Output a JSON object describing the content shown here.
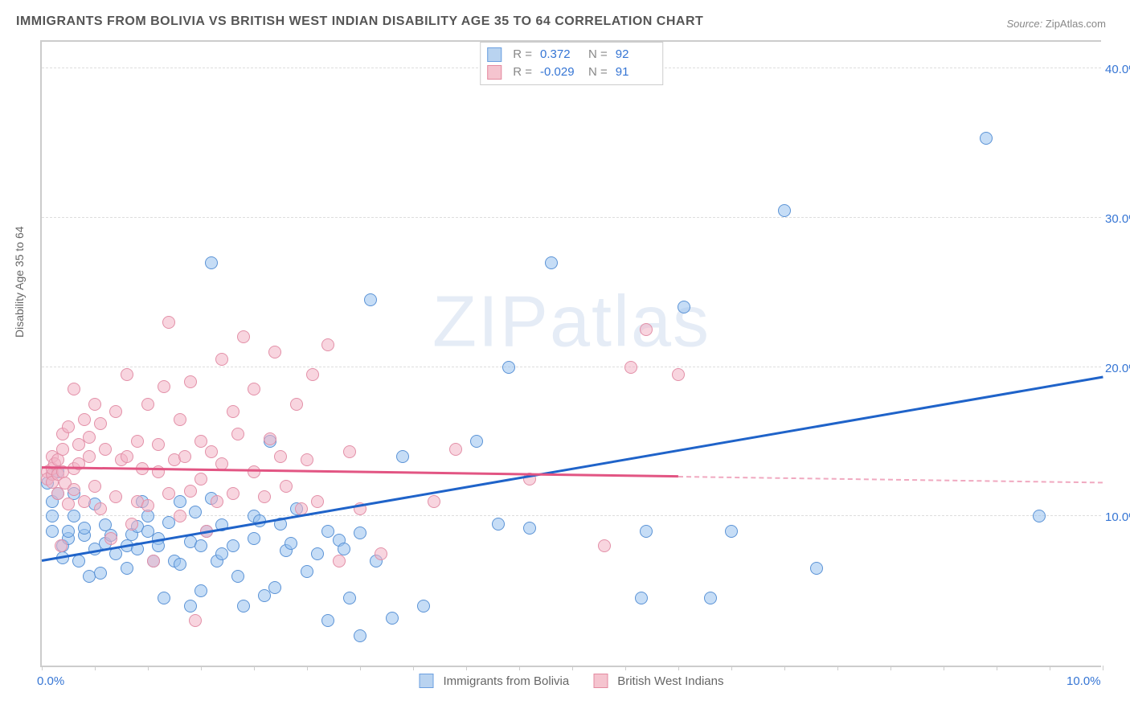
{
  "title": "IMMIGRANTS FROM BOLIVIA VS BRITISH WEST INDIAN DISABILITY AGE 35 TO 64 CORRELATION CHART",
  "source_prefix": "Source: ",
  "source_name": "ZipAtlas.com",
  "y_axis_label": "Disability Age 35 to 64",
  "watermark_a": "ZIP",
  "watermark_b": "atlas",
  "chart": {
    "type": "scatter",
    "xlim": [
      0,
      10
    ],
    "ylim": [
      0,
      42
    ],
    "x_ticks": [
      0,
      5,
      10
    ],
    "x_tick_labels": [
      "0.0%",
      "",
      "10.0%"
    ],
    "y_ticks": [
      10,
      20,
      30,
      40
    ],
    "y_tick_labels": [
      "10.0%",
      "20.0%",
      "30.0%",
      "40.0%"
    ],
    "background_color": "#ffffff",
    "grid_color": "#dddddd",
    "axis_color": "#cccccc",
    "x_minor_ticks": 20
  },
  "legend_top": {
    "r_label": "R =",
    "n_label": "N =",
    "rows": [
      {
        "swatch_fill": "#b9d3f0",
        "swatch_border": "#6a9fe0",
        "r": "0.372",
        "n": "92"
      },
      {
        "swatch_fill": "#f5c4cf",
        "swatch_border": "#e48aa0",
        "r": "-0.029",
        "n": "91"
      }
    ]
  },
  "legend_bottom": {
    "items": [
      {
        "swatch_fill": "#b9d3f0",
        "swatch_border": "#6a9fe0",
        "label": "Immigrants from Bolivia"
      },
      {
        "swatch_fill": "#f5c4cf",
        "swatch_border": "#e48aa0",
        "label": "British West Indians"
      }
    ]
  },
  "series": [
    {
      "name": "bolivia",
      "fill": "rgba(151, 193, 238, 0.55)",
      "stroke": "#5b93d6",
      "marker_size": 16,
      "trend_color": "#1f63c9",
      "trend_from": [
        0,
        7.0
      ],
      "trend_to": [
        10,
        19.3
      ],
      "points": [
        [
          0.05,
          12.2
        ],
        [
          0.1,
          11.0
        ],
        [
          0.1,
          12.8
        ],
        [
          0.1,
          10.0
        ],
        [
          0.1,
          9.0
        ],
        [
          0.15,
          11.5
        ],
        [
          0.15,
          13.0
        ],
        [
          0.2,
          7.2
        ],
        [
          0.2,
          8.0
        ],
        [
          0.25,
          8.5
        ],
        [
          0.25,
          9.0
        ],
        [
          0.3,
          10.0
        ],
        [
          0.3,
          11.5
        ],
        [
          0.35,
          7.0
        ],
        [
          0.4,
          8.7
        ],
        [
          0.4,
          9.2
        ],
        [
          0.45,
          6.0
        ],
        [
          0.5,
          7.8
        ],
        [
          0.5,
          10.8
        ],
        [
          0.55,
          6.2
        ],
        [
          0.6,
          9.4
        ],
        [
          0.6,
          8.2
        ],
        [
          0.65,
          8.7
        ],
        [
          0.7,
          7.5
        ],
        [
          0.8,
          8.0
        ],
        [
          0.8,
          6.5
        ],
        [
          0.85,
          8.8
        ],
        [
          0.9,
          9.3
        ],
        [
          0.9,
          7.8
        ],
        [
          0.95,
          11.0
        ],
        [
          1.0,
          9.0
        ],
        [
          1.0,
          10.0
        ],
        [
          1.05,
          7.0
        ],
        [
          1.1,
          8.5
        ],
        [
          1.1,
          8.0
        ],
        [
          1.15,
          4.5
        ],
        [
          1.2,
          9.6
        ],
        [
          1.25,
          7.0
        ],
        [
          1.3,
          11.0
        ],
        [
          1.3,
          6.8
        ],
        [
          1.4,
          8.3
        ],
        [
          1.4,
          4.0
        ],
        [
          1.45,
          10.3
        ],
        [
          1.5,
          8.0
        ],
        [
          1.5,
          5.0
        ],
        [
          1.55,
          9.0
        ],
        [
          1.6,
          11.2
        ],
        [
          1.6,
          27.0
        ],
        [
          1.65,
          7.0
        ],
        [
          1.7,
          7.5
        ],
        [
          1.7,
          9.4
        ],
        [
          1.8,
          8.0
        ],
        [
          1.85,
          6.0
        ],
        [
          1.9,
          4.0
        ],
        [
          2.0,
          10.0
        ],
        [
          2.0,
          8.5
        ],
        [
          2.05,
          9.7
        ],
        [
          2.1,
          4.7
        ],
        [
          2.15,
          15.0
        ],
        [
          2.2,
          5.2
        ],
        [
          2.25,
          9.5
        ],
        [
          2.3,
          7.7
        ],
        [
          2.35,
          8.2
        ],
        [
          2.4,
          10.5
        ],
        [
          2.5,
          6.3
        ],
        [
          2.6,
          7.5
        ],
        [
          2.7,
          9.0
        ],
        [
          2.7,
          3.0
        ],
        [
          2.8,
          8.4
        ],
        [
          2.85,
          7.8
        ],
        [
          2.9,
          4.5
        ],
        [
          3.0,
          8.9
        ],
        [
          3.0,
          2.0
        ],
        [
          3.1,
          24.5
        ],
        [
          3.15,
          7.0
        ],
        [
          3.3,
          3.2
        ],
        [
          3.4,
          14.0
        ],
        [
          3.6,
          4.0
        ],
        [
          4.1,
          15.0
        ],
        [
          4.3,
          9.5
        ],
        [
          4.4,
          20.0
        ],
        [
          4.6,
          9.2
        ],
        [
          4.8,
          27.0
        ],
        [
          5.65,
          4.5
        ],
        [
          5.7,
          9.0
        ],
        [
          6.05,
          24.0
        ],
        [
          6.3,
          4.5
        ],
        [
          6.5,
          9.0
        ],
        [
          7.0,
          30.5
        ],
        [
          7.3,
          6.5
        ],
        [
          8.9,
          35.3
        ],
        [
          9.4,
          10.0
        ]
      ]
    },
    {
      "name": "bwi",
      "fill": "rgba(243, 178, 196, 0.55)",
      "stroke": "#e390a8",
      "marker_size": 16,
      "trend_color": "#e25583",
      "trend_from": [
        0,
        13.2
      ],
      "trend_to": [
        6,
        12.6
      ],
      "trend_dash_to": [
        10,
        12.2
      ],
      "points": [
        [
          0.05,
          13.0
        ],
        [
          0.05,
          12.5
        ],
        [
          0.1,
          14.0
        ],
        [
          0.1,
          12.8
        ],
        [
          0.1,
          13.2
        ],
        [
          0.1,
          12.3
        ],
        [
          0.12,
          13.5
        ],
        [
          0.15,
          11.5
        ],
        [
          0.15,
          12.8
        ],
        [
          0.15,
          13.8
        ],
        [
          0.18,
          8.0
        ],
        [
          0.2,
          14.5
        ],
        [
          0.2,
          13.0
        ],
        [
          0.2,
          15.5
        ],
        [
          0.22,
          12.2
        ],
        [
          0.25,
          16.0
        ],
        [
          0.25,
          10.8
        ],
        [
          0.3,
          13.2
        ],
        [
          0.3,
          11.8
        ],
        [
          0.3,
          18.5
        ],
        [
          0.35,
          13.5
        ],
        [
          0.35,
          14.8
        ],
        [
          0.4,
          16.5
        ],
        [
          0.4,
          11.0
        ],
        [
          0.45,
          14.0
        ],
        [
          0.45,
          15.3
        ],
        [
          0.5,
          17.5
        ],
        [
          0.5,
          12.0
        ],
        [
          0.55,
          10.5
        ],
        [
          0.55,
          16.2
        ],
        [
          0.6,
          14.5
        ],
        [
          0.65,
          8.5
        ],
        [
          0.7,
          17.0
        ],
        [
          0.7,
          11.3
        ],
        [
          0.75,
          13.8
        ],
        [
          0.8,
          19.5
        ],
        [
          0.8,
          14.0
        ],
        [
          0.85,
          9.5
        ],
        [
          0.9,
          11.0
        ],
        [
          0.9,
          15.0
        ],
        [
          0.95,
          13.2
        ],
        [
          1.0,
          10.7
        ],
        [
          1.0,
          17.5
        ],
        [
          1.05,
          7.0
        ],
        [
          1.1,
          13.0
        ],
        [
          1.1,
          14.8
        ],
        [
          1.15,
          18.7
        ],
        [
          1.2,
          11.5
        ],
        [
          1.2,
          23.0
        ],
        [
          1.25,
          13.8
        ],
        [
          1.3,
          16.5
        ],
        [
          1.3,
          10.0
        ],
        [
          1.35,
          14.0
        ],
        [
          1.4,
          11.7
        ],
        [
          1.4,
          19.0
        ],
        [
          1.45,
          3.0
        ],
        [
          1.5,
          15.0
        ],
        [
          1.5,
          12.5
        ],
        [
          1.55,
          9.0
        ],
        [
          1.6,
          14.3
        ],
        [
          1.65,
          11.0
        ],
        [
          1.7,
          13.5
        ],
        [
          1.7,
          20.5
        ],
        [
          1.8,
          17.0
        ],
        [
          1.8,
          11.5
        ],
        [
          1.85,
          15.5
        ],
        [
          1.9,
          22.0
        ],
        [
          2.0,
          13.0
        ],
        [
          2.0,
          18.5
        ],
        [
          2.1,
          11.3
        ],
        [
          2.15,
          15.2
        ],
        [
          2.2,
          21.0
        ],
        [
          2.25,
          14.0
        ],
        [
          2.3,
          12.0
        ],
        [
          2.4,
          17.5
        ],
        [
          2.45,
          10.5
        ],
        [
          2.5,
          13.8
        ],
        [
          2.55,
          19.5
        ],
        [
          2.6,
          11.0
        ],
        [
          2.7,
          21.5
        ],
        [
          2.8,
          7.0
        ],
        [
          2.9,
          14.3
        ],
        [
          3.0,
          10.5
        ],
        [
          3.2,
          7.5
        ],
        [
          3.7,
          11.0
        ],
        [
          3.9,
          14.5
        ],
        [
          4.6,
          12.5
        ],
        [
          5.3,
          8.0
        ],
        [
          5.55,
          20.0
        ],
        [
          5.7,
          22.5
        ],
        [
          6.0,
          19.5
        ]
      ]
    }
  ]
}
